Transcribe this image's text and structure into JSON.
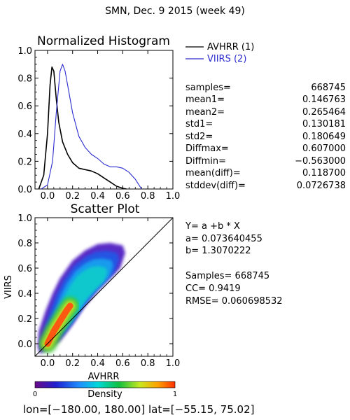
{
  "title": "SMN,  Dec. 9 2015 (week 49)",
  "colors": {
    "avhrr": "#000000",
    "viirs": "#2b2bd0",
    "axis": "#000000",
    "background": "#ffffff"
  },
  "chart_data": [
    {
      "type": "line",
      "title": "Normalized Histogram",
      "xlim": [
        -0.1,
        1.0
      ],
      "ylim": [
        0.0,
        1.0
      ],
      "xticks": [
        "0.0",
        "0.2",
        "0.4",
        "0.6",
        "0.8",
        "1.0"
      ],
      "yticks": [
        "0.0",
        "0.2",
        "0.4",
        "0.6",
        "0.8",
        "1.0"
      ],
      "legend_position": "right",
      "series": [
        {
          "name": "AVHRR (1)",
          "color": "#000000",
          "x": [
            -0.07,
            -0.03,
            0.0,
            0.02,
            0.035,
            0.05,
            0.07,
            0.09,
            0.12,
            0.16,
            0.2,
            0.25,
            0.3,
            0.35,
            0.4,
            0.45,
            0.5,
            0.55,
            0.6,
            0.63
          ],
          "y": [
            0.0,
            0.1,
            0.4,
            0.75,
            0.88,
            0.85,
            0.65,
            0.48,
            0.34,
            0.25,
            0.19,
            0.15,
            0.14,
            0.13,
            0.11,
            0.08,
            0.05,
            0.02,
            0.005,
            0.0
          ]
        },
        {
          "name": "VIIRS (2)",
          "color": "#2b2bd0",
          "x": [
            -0.05,
            0.0,
            0.04,
            0.07,
            0.1,
            0.12,
            0.14,
            0.17,
            0.2,
            0.25,
            0.3,
            0.35,
            0.4,
            0.45,
            0.5,
            0.55,
            0.6,
            0.65,
            0.7,
            0.75
          ],
          "y": [
            0.0,
            0.03,
            0.2,
            0.55,
            0.85,
            0.9,
            0.85,
            0.7,
            0.55,
            0.38,
            0.3,
            0.25,
            0.22,
            0.18,
            0.16,
            0.16,
            0.15,
            0.12,
            0.07,
            0.0
          ]
        }
      ]
    },
    {
      "type": "scatter",
      "title": "Scatter Plot",
      "xlabel": "AVHRR",
      "ylabel": "VIIRS",
      "xlim": [
        -0.1,
        1.0
      ],
      "ylim": [
        -0.1,
        1.0
      ],
      "xticks": [
        "0.0",
        "0.2",
        "0.4",
        "0.6",
        "0.8",
        "1.0"
      ],
      "yticks": [
        "0.0",
        "0.2",
        "0.4",
        "0.6",
        "0.8",
        "1.0"
      ],
      "one_to_one_line": true,
      "density_colorbar": {
        "label": "Density",
        "min": "0",
        "max": "1"
      },
      "density_core": [
        [
          0.0,
          0.0
        ],
        [
          0.05,
          0.1
        ],
        [
          0.1,
          0.18
        ],
        [
          0.15,
          0.26
        ],
        [
          0.18,
          0.3
        ]
      ],
      "density_envelope_lower": [
        [
          -0.06,
          -0.08
        ],
        [
          0.0,
          -0.05
        ],
        [
          0.1,
          0.02
        ],
        [
          0.2,
          0.15
        ],
        [
          0.3,
          0.3
        ],
        [
          0.4,
          0.42
        ],
        [
          0.5,
          0.52
        ],
        [
          0.58,
          0.6
        ],
        [
          0.62,
          0.72
        ]
      ],
      "density_envelope_upper": [
        [
          0.6,
          0.78
        ],
        [
          0.5,
          0.8
        ],
        [
          0.4,
          0.79
        ],
        [
          0.3,
          0.74
        ],
        [
          0.2,
          0.66
        ],
        [
          0.1,
          0.52
        ],
        [
          0.04,
          0.4
        ],
        [
          -0.02,
          0.25
        ],
        [
          -0.07,
          0.1
        ],
        [
          -0.08,
          -0.02
        ]
      ]
    }
  ],
  "stats": [
    {
      "label": "samples=",
      "value": "668745"
    },
    {
      "label": "mean1=",
      "value": "0.146763"
    },
    {
      "label": "mean2=",
      "value": "0.265464"
    },
    {
      "label": "std1=",
      "value": "0.130181"
    },
    {
      "label": "std2=",
      "value": "0.180649"
    },
    {
      "label": "Diffmax=",
      "value": "0.607000"
    },
    {
      "label": "Diffmin=",
      "value": "−0.563000"
    },
    {
      "label": "mean(diff)=",
      "value": "0.118700"
    },
    {
      "label": "stddev(diff)=",
      "value": "0.0726738"
    }
  ],
  "regression": {
    "equation": "Y= a +b * X",
    "a": "a= 0.073640455",
    "b": "b= 1.3070222",
    "samples": "Samples= 668745",
    "cc": "CC=  0.9419",
    "rmse": "RMSE= 0.060698532"
  },
  "footer": "lon=[−180.00, 180.00] lat=[−55.15, 75.02]"
}
